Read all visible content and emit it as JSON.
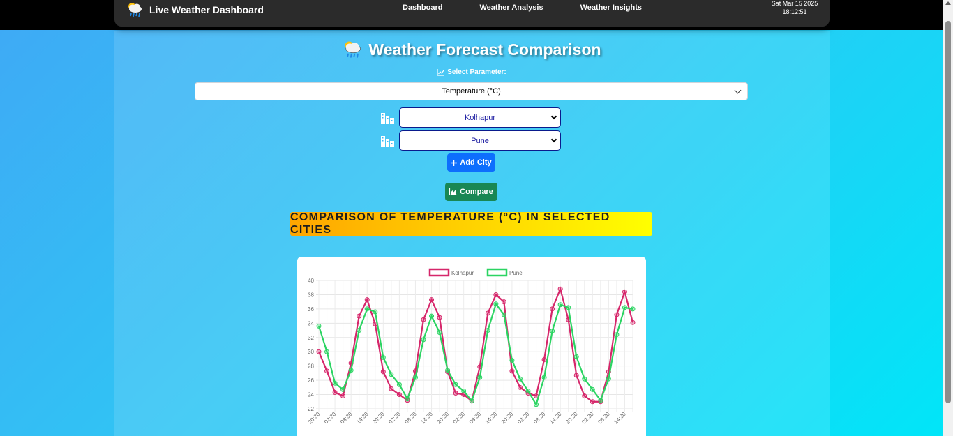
{
  "nav": {
    "brand": "Live Weather Dashboard",
    "brand_icon": "cloud-rain-sun-icon",
    "links": [
      "Dashboard",
      "Weather Analysis",
      "Weather Insights"
    ],
    "date": "Sat Mar 15 2025",
    "time": "18:12:51"
  },
  "main": {
    "title": "Weather Forecast Comparison",
    "param_label": "Select Parameter:",
    "param_value": "Temperature (°C)",
    "cities": [
      "Kolhapur",
      "Pune"
    ],
    "add_city": "Add City",
    "compare": "Compare",
    "banner": "COMPARISON OF TEMPERATURE (°C) IN SELECTED CITIES"
  },
  "colors": {
    "kolhapur": "#d6266a",
    "pune": "#2bd462",
    "add_button": "#0d6efd",
    "compare_button": "#198754"
  },
  "chart_data": {
    "type": "line",
    "x_tick_labels": [
      "20:30",
      "02:30",
      "08:30",
      "14:30",
      "20:30",
      "02:30",
      "08:30",
      "14:30",
      "20:30",
      "02:30",
      "08:30",
      "14:30",
      "20:30",
      "02:30",
      "08:30",
      "14:30",
      "20:30",
      "02:30",
      "08:30",
      "14:30"
    ],
    "ylim": [
      22,
      40
    ],
    "y_ticks": [
      22,
      24,
      26,
      28,
      30,
      32,
      34,
      36,
      38,
      40
    ],
    "grid": true,
    "legend_position": "top-center",
    "series": [
      {
        "name": "Kolhapur",
        "values": [
          30.0,
          27.3,
          24.3,
          23.8,
          28.4,
          35.0,
          37.3,
          33.9,
          27.2,
          24.8,
          24.0,
          23.2,
          27.3,
          34.5,
          37.3,
          34.8,
          27.2,
          24.2,
          24.0,
          23.1,
          27.9,
          35.4,
          38.0,
          37.0,
          27.3,
          25.0,
          24.2,
          23.8,
          28.9,
          36.0,
          38.8,
          34.5,
          26.7,
          23.8,
          23.0,
          23.0,
          27.2,
          35.2,
          38.4,
          34.1
        ]
      },
      {
        "name": "Pune",
        "values": [
          33.6,
          30.0,
          25.6,
          24.7,
          27.4,
          33.0,
          36.0,
          35.6,
          29.2,
          26.8,
          25.4,
          23.4,
          26.4,
          31.7,
          35.0,
          32.7,
          27.4,
          25.4,
          24.5,
          23.1,
          26.4,
          33.0,
          36.7,
          35.2,
          28.8,
          26.2,
          24.5,
          22.6,
          26.4,
          32.9,
          36.6,
          36.2,
          29.3,
          26.2,
          24.7,
          23.2,
          26.2,
          32.4,
          36.2,
          36.0
        ]
      }
    ]
  }
}
